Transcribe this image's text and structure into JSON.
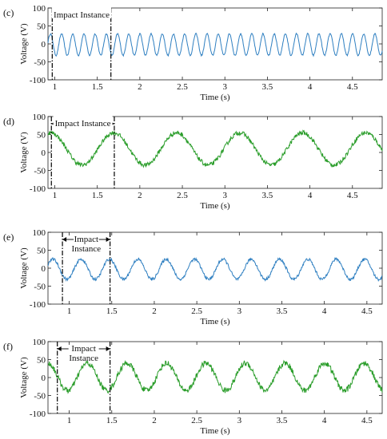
{
  "chart_data": [
    {
      "type": "line",
      "panel_label": "(c)",
      "xlabel": "Time (s)",
      "ylabel": "Voltage (V)",
      "xlim": [
        0.92,
        4.85
      ],
      "ylim": [
        -100,
        100
      ],
      "x_ticks": [
        "1",
        "1.5",
        "2",
        "2.5",
        "3",
        "3.5",
        "4",
        "4.5"
      ],
      "y_ticks": [
        "100",
        "50",
        "0",
        "-50",
        "-100"
      ],
      "grid": false,
      "color": "#2e7fc1",
      "annotation": {
        "text": "Impact Instance",
        "x_start": 0.97,
        "x_end": 1.66
      },
      "series": [
        {
          "kind": "sine",
          "amplitude": 30,
          "frequency_hz": 7.6,
          "phase": 0.2,
          "offset": -2,
          "noise": 2,
          "x_start": 0.92,
          "x_end": 4.85
        }
      ]
    },
    {
      "type": "line",
      "panel_label": "(d)",
      "xlabel": "Time (s)",
      "ylabel": "Voltage (V)",
      "xlim": [
        0.92,
        4.85
      ],
      "ylim": [
        -100,
        100
      ],
      "x_ticks": [
        "1",
        "1.5",
        "2",
        "2.5",
        "3",
        "3.5",
        "4",
        "4.5"
      ],
      "y_ticks": [
        "100",
        "50",
        "0",
        "-50",
        "-100"
      ],
      "grid": false,
      "color": "#2a9d2a",
      "annotation": {
        "text": "Impact Instance",
        "x_start": 0.96,
        "x_end": 1.7
      },
      "series": [
        {
          "kind": "sine",
          "amplitude": 45,
          "frequency_hz": 1.35,
          "phase": 1.3,
          "offset": 10,
          "noise": 6,
          "x_start": 0.92,
          "x_end": 4.85
        }
      ]
    },
    {
      "type": "line",
      "panel_label": "(e)",
      "xlabel": "Time (s)",
      "ylabel": "Voltage (V)",
      "xlim": [
        0.75,
        4.68
      ],
      "ylim": [
        -100,
        100
      ],
      "x_ticks": [
        "1",
        "1.5",
        "2",
        "2.5",
        "3",
        "3.5",
        "4",
        "4.5"
      ],
      "y_ticks": [
        "100",
        "50",
        "0",
        "-50",
        "-100"
      ],
      "grid": false,
      "color": "#2e7fc1",
      "annotation": {
        "text": "Impact\nInstance",
        "x_start": 0.92,
        "x_end": 1.48
      },
      "series": [
        {
          "kind": "sine",
          "amplitude": 28,
          "frequency_hz": 3.0,
          "phase": 0.5,
          "offset": -3,
          "noise": 4,
          "x_start": 0.75,
          "x_end": 4.68
        }
      ]
    },
    {
      "type": "line",
      "panel_label": "(f)",
      "xlabel": "Time (s)",
      "ylabel": "Voltage (V)",
      "xlim": [
        0.75,
        4.68
      ],
      "ylim": [
        -100,
        100
      ],
      "x_ticks": [
        "1",
        "1.5",
        "2",
        "2.5",
        "3",
        "3.5",
        "4",
        "4.5"
      ],
      "y_ticks": [
        "100",
        "50",
        "0",
        "-50",
        "-100"
      ],
      "grid": false,
      "color": "#2a9d2a",
      "annotation": {
        "text": "Impact\nInstance",
        "x_start": 0.86,
        "x_end": 1.48
      },
      "series": [
        {
          "kind": "sine",
          "amplitude": 38,
          "frequency_hz": 2.15,
          "phase": 1.6,
          "offset": 2,
          "noise": 8,
          "x_start": 0.75,
          "x_end": 4.68
        }
      ]
    }
  ]
}
